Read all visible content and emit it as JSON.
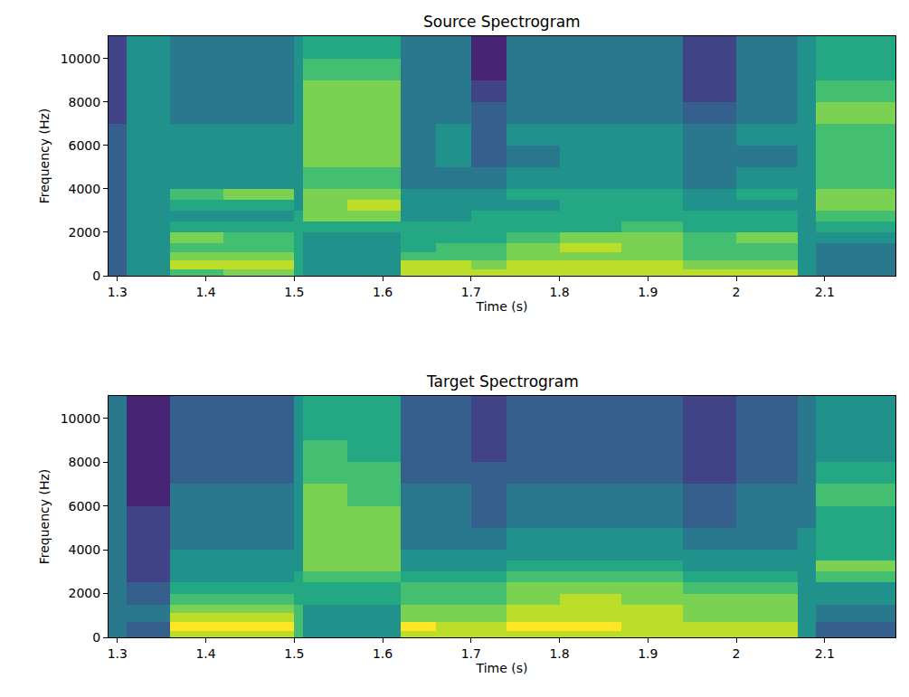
{
  "chart_data": [
    {
      "type": "heatmap",
      "title": "Source Spectrogram",
      "x_label": "Time (s)",
      "y_label": "Frequency (Hz)",
      "color": "viridis",
      "x": [
        1.29,
        1.31,
        1.36,
        1.42,
        1.5,
        1.51,
        1.56,
        1.62,
        1.66,
        1.7,
        1.74,
        1.8,
        1.87,
        1.94,
        2.0,
        2.07,
        2.09,
        2.18
      ],
      "y": [
        0,
        300,
        700,
        1100,
        1500,
        2000,
        2500,
        3000,
        3500,
        4000,
        5000,
        6000,
        7000,
        8000,
        9000,
        10000,
        11025
      ],
      "z": [
        [
          3,
          5,
          7,
          8,
          6,
          5,
          5,
          9,
          9,
          9,
          9,
          9,
          9,
          9,
          9,
          5,
          4
        ],
        [
          3,
          5,
          9,
          9,
          6,
          5,
          5,
          9,
          9,
          8,
          9,
          9,
          9,
          8,
          8,
          5,
          4
        ],
        [
          3,
          5,
          8,
          8,
          6,
          5,
          5,
          7,
          7,
          7,
          8,
          8,
          8,
          7,
          7,
          5,
          4
        ],
        [
          3,
          5,
          7,
          7,
          6,
          5,
          5,
          6,
          7,
          7,
          8,
          9,
          8,
          7,
          7,
          5,
          4
        ],
        [
          3,
          5,
          8,
          7,
          6,
          5,
          5,
          6,
          6,
          6,
          7,
          8,
          8,
          7,
          8,
          5,
          5
        ],
        [
          3,
          5,
          6,
          6,
          6,
          6,
          6,
          6,
          6,
          6,
          6,
          6,
          7,
          6,
          6,
          5,
          6
        ],
        [
          3,
          5,
          5,
          5,
          6,
          8,
          8,
          5,
          5,
          6,
          6,
          6,
          6,
          6,
          6,
          5,
          7
        ],
        [
          3,
          5,
          6,
          6,
          5,
          8,
          9,
          5,
          5,
          5,
          5,
          6,
          6,
          5,
          5,
          5,
          8
        ],
        [
          3,
          5,
          7,
          8,
          5,
          8,
          8,
          5,
          5,
          5,
          6,
          6,
          6,
          5,
          6,
          5,
          8
        ],
        [
          3,
          5,
          5,
          5,
          5,
          7,
          7,
          4,
          4,
          4,
          5,
          5,
          5,
          4,
          5,
          5,
          7
        ],
        [
          3,
          5,
          5,
          5,
          5,
          8,
          8,
          4,
          5,
          3,
          4,
          5,
          5,
          4,
          4,
          5,
          7
        ],
        [
          3,
          5,
          5,
          5,
          5,
          8,
          8,
          4,
          5,
          3,
          5,
          5,
          5,
          4,
          5,
          5,
          7
        ],
        [
          2,
          5,
          4,
          4,
          5,
          8,
          8,
          4,
          4,
          3,
          4,
          4,
          4,
          3,
          4,
          5,
          8
        ],
        [
          2,
          5,
          4,
          4,
          5,
          8,
          8,
          4,
          4,
          2,
          4,
          4,
          4,
          2,
          4,
          5,
          7
        ],
        [
          2,
          5,
          4,
          4,
          5,
          7,
          7,
          4,
          4,
          1,
          4,
          4,
          4,
          2,
          4,
          5,
          6
        ],
        [
          2,
          5,
          4,
          4,
          5,
          6,
          6,
          4,
          4,
          1,
          4,
          4,
          4,
          2,
          4,
          5,
          6
        ]
      ],
      "z_range": [
        0,
        10
      ],
      "xlim": [
        1.29,
        2.18
      ],
      "xticks": [
        1.3,
        1.4,
        1.5,
        1.6,
        1.7,
        1.8,
        1.9,
        2.0,
        2.1
      ],
      "ylim": [
        0,
        11025
      ],
      "yticks": [
        0,
        2000,
        4000,
        6000,
        8000,
        10000
      ]
    },
    {
      "type": "heatmap",
      "title": "Target Spectrogram",
      "x_label": "Time (s)",
      "y_label": "Frequency (Hz)",
      "color": "viridis",
      "x": [
        1.29,
        1.31,
        1.36,
        1.42,
        1.5,
        1.51,
        1.56,
        1.62,
        1.66,
        1.7,
        1.74,
        1.8,
        1.87,
        1.94,
        2.0,
        2.07,
        2.09,
        2.18
      ],
      "y": [
        0,
        300,
        700,
        1100,
        1500,
        2000,
        2500,
        3000,
        3500,
        4000,
        5000,
        6000,
        7000,
        8000,
        9000,
        10000,
        11025
      ],
      "z": [
        [
          4,
          3,
          9,
          9,
          7,
          5,
          5,
          9,
          9,
          9,
          9,
          9,
          9,
          9,
          9,
          5,
          3
        ],
        [
          4,
          3,
          10,
          10,
          7,
          5,
          5,
          10,
          9,
          9,
          10,
          10,
          9,
          9,
          9,
          5,
          3
        ],
        [
          4,
          4,
          9,
          9,
          7,
          5,
          5,
          8,
          8,
          8,
          9,
          9,
          9,
          8,
          8,
          5,
          4
        ],
        [
          4,
          4,
          8,
          8,
          7,
          5,
          5,
          8,
          8,
          8,
          9,
          9,
          9,
          8,
          8,
          5,
          4
        ],
        [
          4,
          3,
          7,
          7,
          6,
          6,
          6,
          7,
          7,
          7,
          8,
          9,
          8,
          8,
          8,
          5,
          5
        ],
        [
          4,
          3,
          6,
          6,
          6,
          6,
          6,
          7,
          7,
          7,
          8,
          8,
          8,
          7,
          7,
          5,
          5
        ],
        [
          4,
          2,
          5,
          5,
          6,
          7,
          7,
          6,
          6,
          6,
          7,
          7,
          7,
          6,
          6,
          5,
          7
        ],
        [
          4,
          2,
          5,
          5,
          5,
          8,
          8,
          5,
          5,
          5,
          6,
          6,
          6,
          5,
          5,
          5,
          8
        ],
        [
          4,
          2,
          5,
          5,
          5,
          8,
          8,
          5,
          5,
          5,
          5,
          5,
          5,
          5,
          5,
          5,
          6
        ],
        [
          4,
          2,
          4,
          4,
          5,
          8,
          8,
          4,
          4,
          4,
          5,
          5,
          5,
          4,
          4,
          5,
          6
        ],
        [
          4,
          2,
          4,
          4,
          5,
          8,
          8,
          4,
          4,
          3,
          4,
          4,
          4,
          3,
          4,
          4,
          6
        ],
        [
          4,
          1,
          4,
          4,
          5,
          8,
          7,
          4,
          4,
          3,
          4,
          4,
          4,
          3,
          4,
          4,
          7
        ],
        [
          4,
          1,
          3,
          3,
          5,
          7,
          7,
          3,
          3,
          3,
          3,
          3,
          3,
          2,
          3,
          4,
          6
        ],
        [
          4,
          1,
          3,
          3,
          5,
          7,
          6,
          3,
          3,
          2,
          3,
          3,
          3,
          2,
          3,
          4,
          5
        ],
        [
          4,
          1,
          3,
          3,
          5,
          6,
          6,
          3,
          3,
          2,
          3,
          3,
          3,
          2,
          3,
          4,
          5
        ],
        [
          4,
          1,
          3,
          3,
          5,
          6,
          6,
          3,
          3,
          2,
          3,
          3,
          3,
          2,
          3,
          4,
          5
        ]
      ],
      "z_range": [
        0,
        10
      ],
      "xlim": [
        1.29,
        2.18
      ],
      "xticks": [
        1.3,
        1.4,
        1.5,
        1.6,
        1.7,
        1.8,
        1.9,
        2.0,
        2.1
      ],
      "ylim": [
        0,
        11025
      ],
      "yticks": [
        0,
        2000,
        4000,
        6000,
        8000,
        10000
      ]
    }
  ]
}
